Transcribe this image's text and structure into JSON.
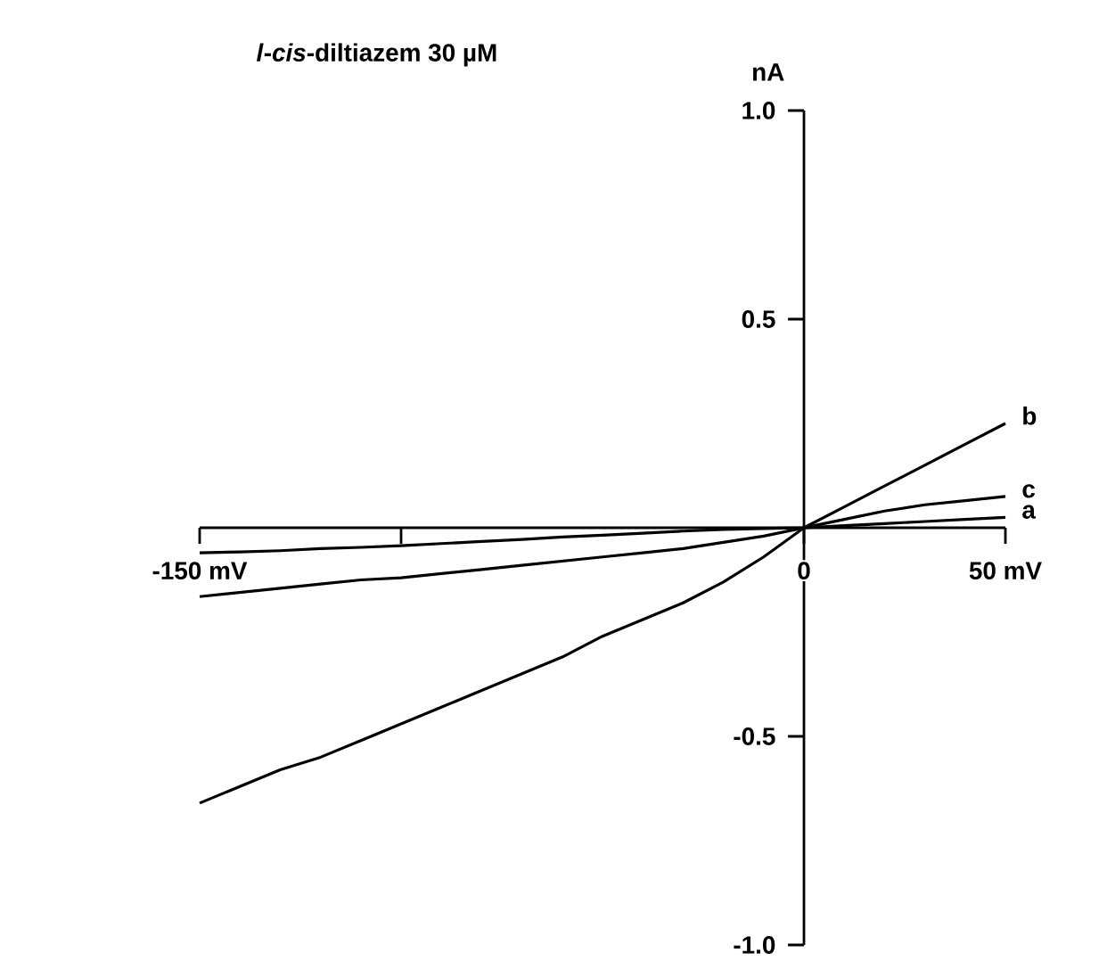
{
  "chart_data": {
    "type": "line",
    "title": "*l*-*cis*-diltiazem 30 µM",
    "ylabel": "nA",
    "x": [
      -150,
      -140,
      -130,
      -120,
      -110,
      -100,
      -90,
      -80,
      -70,
      -60,
      -50,
      -40,
      -30,
      -20,
      -10,
      0,
      10,
      20,
      30,
      40,
      50
    ],
    "series": [
      {
        "name": "a",
        "color": "#000000",
        "values": [
          -0.06,
          -0.058,
          -0.055,
          -0.05,
          -0.047,
          -0.043,
          -0.038,
          -0.033,
          -0.028,
          -0.022,
          -0.018,
          -0.013,
          -0.008,
          -0.004,
          -0.002,
          0,
          0.005,
          0.01,
          0.015,
          0.02,
          0.025
        ]
      },
      {
        "name": "b",
        "color": "#000000",
        "values": [
          -0.66,
          -0.62,
          -0.58,
          -0.55,
          -0.51,
          -0.47,
          -0.43,
          -0.39,
          -0.35,
          -0.31,
          -0.26,
          -0.22,
          -0.18,
          -0.13,
          -0.07,
          0,
          0.05,
          0.1,
          0.15,
          0.2,
          0.25
        ]
      },
      {
        "name": "c",
        "color": "#000000",
        "values": [
          -0.165,
          -0.155,
          -0.145,
          -0.135,
          -0.125,
          -0.12,
          -0.11,
          -0.1,
          -0.09,
          -0.08,
          -0.07,
          -0.06,
          -0.05,
          -0.035,
          -0.02,
          0,
          0.02,
          0.04,
          0.055,
          0.065,
          0.075
        ]
      }
    ],
    "xlim": [
      -150,
      50
    ],
    "ylim": [
      -1,
      1
    ],
    "xticks": [
      {
        "value": -150,
        "label": "-150 mV"
      },
      {
        "value": -100,
        "label": null
      },
      {
        "value": 0,
        "label": "0"
      },
      {
        "value": 50,
        "label": "50 mV"
      }
    ],
    "yticks": [
      {
        "value": 1,
        "label": "1.0"
      },
      0.5,
      -0.5,
      {
        "value": -1,
        "label": "-1.0"
      }
    ],
    "marker": "none",
    "line_style": "solid"
  }
}
